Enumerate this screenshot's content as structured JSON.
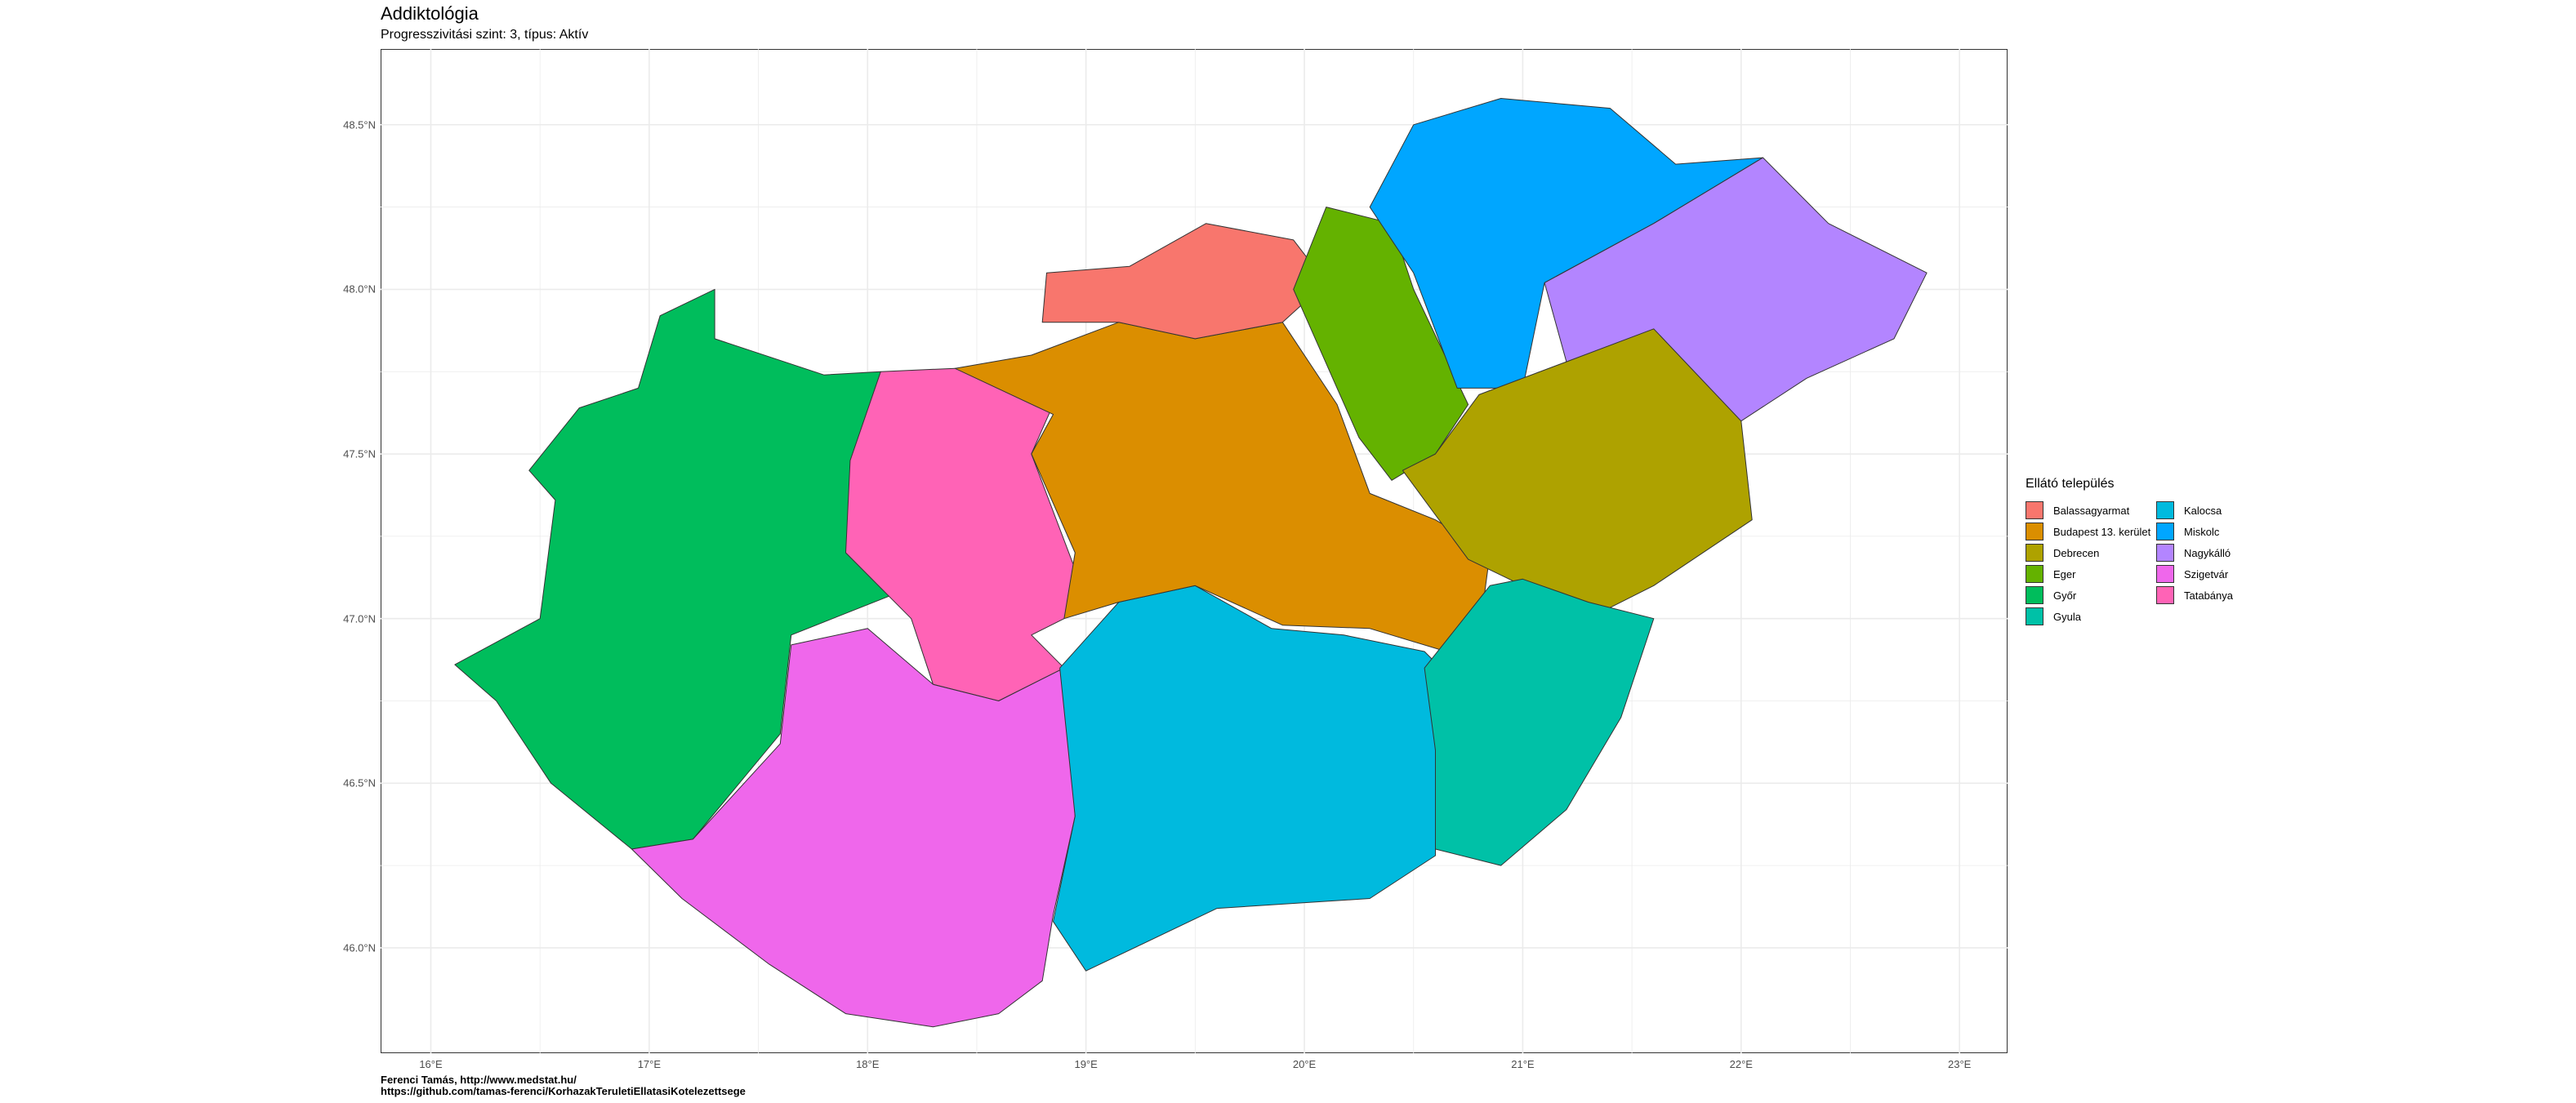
{
  "title": "Addiktológia",
  "subtitle": "Progresszivitási szint: 3, típus: Aktív",
  "caption": {
    "line1": "Ferenci Tamás, http://www.medstat.hu/",
    "line2": "https://github.com/tamas-ferenci/KorhazakTeruletiEllatasiKotelezettsege"
  },
  "chart_data": {
    "type": "choropleth",
    "xlim": [
      15.77,
      23.22
    ],
    "ylim": [
      45.68,
      48.73
    ],
    "grid": true,
    "legend_position": "right",
    "x_ticks": [
      {
        "value": 16,
        "label": "16°E"
      },
      {
        "value": 17,
        "label": "17°E"
      },
      {
        "value": 18,
        "label": "18°E"
      },
      {
        "value": 19,
        "label": "19°E"
      },
      {
        "value": 20,
        "label": "20°E"
      },
      {
        "value": 21,
        "label": "21°E"
      },
      {
        "value": 22,
        "label": "22°E"
      },
      {
        "value": 23,
        "label": "23°E"
      }
    ],
    "y_ticks": [
      {
        "value": 46.0,
        "label": "46.0°N"
      },
      {
        "value": 46.5,
        "label": "46.5°N"
      },
      {
        "value": 47.0,
        "label": "47.0°N"
      },
      {
        "value": 47.5,
        "label": "47.5°N"
      },
      {
        "value": 48.0,
        "label": "48.0°N"
      },
      {
        "value": 48.5,
        "label": "48.5°N"
      }
    ],
    "legend_title": "Ellátó település",
    "categories": [
      {
        "name": "Balassagyarmat",
        "color": "#F8766D"
      },
      {
        "name": "Budapest 13. kerület",
        "color": "#DB8E00"
      },
      {
        "name": "Debrecen",
        "color": "#AEA200"
      },
      {
        "name": "Eger",
        "color": "#64B200"
      },
      {
        "name": "Győr",
        "color": "#00BD5C"
      },
      {
        "name": "Gyula",
        "color": "#00C1A7"
      },
      {
        "name": "Kalocsa",
        "color": "#00BADE"
      },
      {
        "name": "Miskolc",
        "color": "#00A6FF"
      },
      {
        "name": "Nagykálló",
        "color": "#B385FF"
      },
      {
        "name": "Szigetvár",
        "color": "#EF67EB"
      },
      {
        "name": "Tatabánya",
        "color": "#FF63B6"
      }
    ],
    "regions": [
      {
        "category": "Győr",
        "coords": [
          [
            16.11,
            46.86
          ],
          [
            16.5,
            47.0
          ],
          [
            16.57,
            47.36
          ],
          [
            16.45,
            47.45
          ],
          [
            16.68,
            47.64
          ],
          [
            16.95,
            47.7
          ],
          [
            17.05,
            47.92
          ],
          [
            17.3,
            48.0
          ],
          [
            17.3,
            47.85
          ],
          [
            17.8,
            47.74
          ],
          [
            18.06,
            47.75
          ],
          [
            18.0,
            47.5
          ],
          [
            18.22,
            47.1
          ],
          [
            17.65,
            46.95
          ],
          [
            17.6,
            46.65
          ],
          [
            17.2,
            46.33
          ],
          [
            16.92,
            46.3
          ],
          [
            16.55,
            46.5
          ],
          [
            16.3,
            46.75
          ]
        ]
      },
      {
        "category": "Tatabánya",
        "coords": [
          [
            17.92,
            47.48
          ],
          [
            18.06,
            47.75
          ],
          [
            18.4,
            47.76
          ],
          [
            18.85,
            47.65
          ],
          [
            18.75,
            47.5
          ],
          [
            18.95,
            47.15
          ],
          [
            18.9,
            47.0
          ],
          [
            18.75,
            46.95
          ],
          [
            18.9,
            46.85
          ],
          [
            18.6,
            46.75
          ],
          [
            18.3,
            46.8
          ],
          [
            18.2,
            47.0
          ],
          [
            17.9,
            47.2
          ]
        ]
      },
      {
        "category": "Szigetvár",
        "coords": [
          [
            16.92,
            46.3
          ],
          [
            17.2,
            46.33
          ],
          [
            17.6,
            46.62
          ],
          [
            17.65,
            46.92
          ],
          [
            18.0,
            46.97
          ],
          [
            18.3,
            46.8
          ],
          [
            18.6,
            46.75
          ],
          [
            18.9,
            46.85
          ],
          [
            18.95,
            46.4
          ],
          [
            18.85,
            46.1
          ],
          [
            18.8,
            45.9
          ],
          [
            18.6,
            45.8
          ],
          [
            18.3,
            45.76
          ],
          [
            17.9,
            45.8
          ],
          [
            17.55,
            45.95
          ],
          [
            17.15,
            46.15
          ]
        ]
      },
      {
        "category": "Kalocsa",
        "coords": [
          [
            18.85,
            46.08
          ],
          [
            18.95,
            46.4
          ],
          [
            18.88,
            46.85
          ],
          [
            19.15,
            47.05
          ],
          [
            19.5,
            47.1
          ],
          [
            19.85,
            46.97
          ],
          [
            20.18,
            46.95
          ],
          [
            20.55,
            46.9
          ],
          [
            20.7,
            46.8
          ],
          [
            20.6,
            46.6
          ],
          [
            20.6,
            46.28
          ],
          [
            20.3,
            46.15
          ],
          [
            19.6,
            46.12
          ],
          [
            19.0,
            45.93
          ]
        ]
      },
      {
        "category": "Budapest 13. kerület",
        "coords": [
          [
            18.4,
            47.76
          ],
          [
            18.75,
            47.8
          ],
          [
            19.15,
            47.9
          ],
          [
            19.5,
            47.85
          ],
          [
            19.9,
            47.9
          ],
          [
            20.15,
            47.65
          ],
          [
            20.3,
            47.38
          ],
          [
            20.6,
            47.3
          ],
          [
            20.85,
            47.2
          ],
          [
            20.82,
            47.05
          ],
          [
            20.65,
            46.9
          ],
          [
            20.3,
            46.97
          ],
          [
            19.9,
            46.98
          ],
          [
            19.5,
            47.1
          ],
          [
            19.15,
            47.05
          ],
          [
            18.9,
            47.0
          ],
          [
            18.95,
            47.2
          ],
          [
            18.75,
            47.5
          ],
          [
            18.85,
            47.62
          ]
        ]
      },
      {
        "category": "Balassagyarmat",
        "coords": [
          [
            18.8,
            47.9
          ],
          [
            18.82,
            48.05
          ],
          [
            19.2,
            48.07
          ],
          [
            19.55,
            48.2
          ],
          [
            19.95,
            48.15
          ],
          [
            20.1,
            48.02
          ],
          [
            19.9,
            47.9
          ],
          [
            19.5,
            47.85
          ],
          [
            19.15,
            47.9
          ]
        ]
      },
      {
        "category": "Eger",
        "coords": [
          [
            19.95,
            48.0
          ],
          [
            20.1,
            48.25
          ],
          [
            20.4,
            48.2
          ],
          [
            20.5,
            48.0
          ],
          [
            20.75,
            47.65
          ],
          [
            20.6,
            47.5
          ],
          [
            20.4,
            47.42
          ],
          [
            20.25,
            47.55
          ],
          [
            20.15,
            47.7
          ]
        ]
      },
      {
        "category": "Miskolc",
        "coords": [
          [
            20.3,
            48.25
          ],
          [
            20.5,
            48.5
          ],
          [
            20.9,
            48.58
          ],
          [
            21.4,
            48.55
          ],
          [
            21.7,
            48.38
          ],
          [
            22.1,
            48.4
          ],
          [
            21.6,
            48.2
          ],
          [
            21.1,
            48.02
          ],
          [
            21.0,
            47.7
          ],
          [
            20.7,
            47.7
          ],
          [
            20.5,
            48.05
          ]
        ]
      },
      {
        "category": "Nagykálló",
        "coords": [
          [
            21.1,
            48.02
          ],
          [
            21.6,
            48.2
          ],
          [
            22.1,
            48.4
          ],
          [
            22.4,
            48.2
          ],
          [
            22.85,
            48.05
          ],
          [
            22.7,
            47.85
          ],
          [
            22.3,
            47.73
          ],
          [
            22.0,
            47.6
          ],
          [
            21.6,
            47.72
          ],
          [
            21.2,
            47.78
          ]
        ]
      },
      {
        "category": "Debrecen",
        "coords": [
          [
            20.45,
            47.45
          ],
          [
            20.6,
            47.5
          ],
          [
            20.8,
            47.68
          ],
          [
            21.2,
            47.78
          ],
          [
            21.6,
            47.88
          ],
          [
            22.0,
            47.6
          ],
          [
            22.05,
            47.3
          ],
          [
            21.6,
            47.1
          ],
          [
            21.3,
            47.0
          ],
          [
            21.0,
            47.1
          ],
          [
            20.75,
            47.18
          ]
        ]
      },
      {
        "category": "Gyula",
        "coords": [
          [
            20.55,
            46.85
          ],
          [
            20.6,
            46.6
          ],
          [
            20.6,
            46.3
          ],
          [
            20.9,
            46.25
          ],
          [
            21.2,
            46.42
          ],
          [
            21.45,
            46.7
          ],
          [
            21.6,
            47.0
          ],
          [
            21.3,
            47.05
          ],
          [
            21.0,
            47.12
          ],
          [
            20.85,
            47.1
          ]
        ]
      }
    ]
  }
}
